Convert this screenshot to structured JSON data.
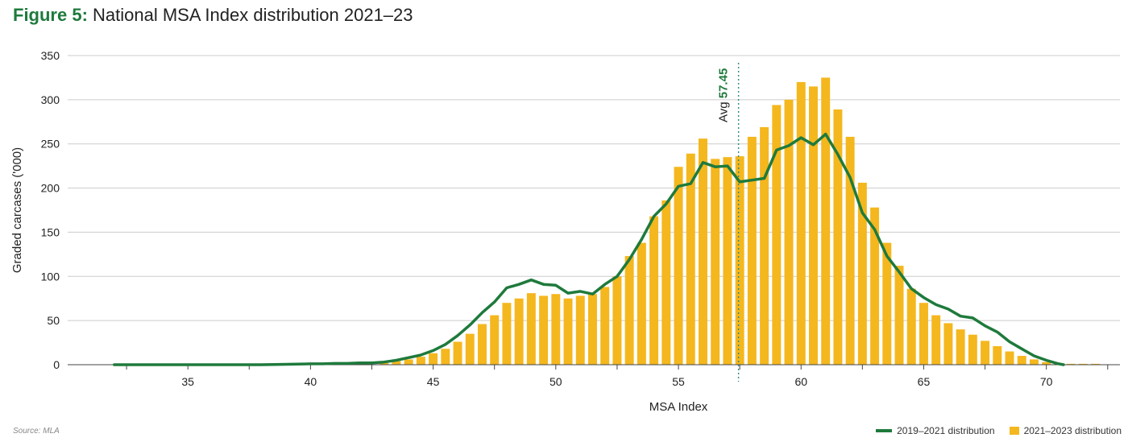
{
  "title": {
    "figure_label": "Figure 5:",
    "text": "National MSA Index distribution 2021–23"
  },
  "source": "Source: MLA",
  "colors": {
    "bar": "#f4b71e",
    "line": "#1e7a3c",
    "grid": "#cccccc",
    "avg": "#2f8a7e"
  },
  "chart_data": {
    "type": "bar",
    "xlabel": "MSA Index",
    "ylabel": "Graded carcases ('000)",
    "xlim": [
      30.1,
      73
    ],
    "ylim": [
      0,
      350
    ],
    "xticks": [
      35,
      40,
      45,
      50,
      55,
      60,
      65,
      70
    ],
    "yticks": [
      0,
      50,
      100,
      150,
      200,
      250,
      300,
      350
    ],
    "legend_position": "bottom-right",
    "grid": "horizontal",
    "average": {
      "label": "Avg",
      "value_label": "57.45",
      "x": 57.45
    },
    "series": [
      {
        "name": "2021–2023 distribution",
        "kind": "bar",
        "x": [
          43.0,
          43.5,
          44.0,
          44.5,
          45.0,
          45.5,
          46.0,
          46.5,
          47.0,
          47.5,
          48.0,
          48.5,
          49.0,
          49.5,
          50.0,
          50.5,
          51.0,
          51.5,
          52.0,
          52.5,
          53.0,
          53.5,
          54.0,
          54.5,
          55.0,
          55.5,
          56.0,
          56.5,
          57.0,
          57.5,
          58.0,
          58.5,
          59.0,
          59.5,
          60.0,
          60.5,
          61.0,
          61.5,
          62.0,
          62.5,
          63.0,
          63.5,
          64.0,
          64.5,
          65.0,
          65.5,
          66.0,
          66.5,
          67.0,
          67.5,
          68.0,
          68.5,
          69.0,
          69.5,
          70.0,
          70.5,
          71.0,
          71.5,
          72.0,
          72.5
        ],
        "values": [
          2,
          4,
          6,
          9,
          13,
          18,
          26,
          35,
          46,
          56,
          70,
          75,
          81,
          78,
          80,
          75,
          78,
          80,
          88,
          100,
          123,
          138,
          168,
          186,
          224,
          239,
          256,
          233,
          235,
          236,
          258,
          269,
          294,
          300,
          320,
          315,
          325,
          289,
          258,
          206,
          178,
          138,
          112,
          86,
          70,
          56,
          47,
          40,
          34,
          27,
          21,
          15,
          10,
          6,
          3,
          1,
          1,
          1,
          1,
          0
        ]
      },
      {
        "name": "2019–2021 distribution",
        "kind": "line",
        "x": [
          32.0,
          33.0,
          34.0,
          35.0,
          36.0,
          37.0,
          38.0,
          39.0,
          40.0,
          40.5,
          41.0,
          41.5,
          42.0,
          42.5,
          43.0,
          43.5,
          44.0,
          44.5,
          45.0,
          45.5,
          46.0,
          46.5,
          47.0,
          47.5,
          48.0,
          48.5,
          49.0,
          49.5,
          50.0,
          50.5,
          51.0,
          51.5,
          52.0,
          52.5,
          53.0,
          53.5,
          54.0,
          54.5,
          55.0,
          55.5,
          56.0,
          56.5,
          57.0,
          57.5,
          58.0,
          58.5,
          59.0,
          59.5,
          60.0,
          60.5,
          61.0,
          61.5,
          62.0,
          62.5,
          63.0,
          63.5,
          64.0,
          64.5,
          65.0,
          65.5,
          66.0,
          66.5,
          67.0,
          67.5,
          68.0,
          68.5,
          69.0,
          69.5,
          70.0,
          70.5,
          70.7
        ],
        "values": [
          0,
          0,
          0,
          0,
          0,
          0,
          0,
          0.5,
          1,
          1,
          1.5,
          1.5,
          2,
          2,
          3,
          5,
          8,
          11,
          16,
          23,
          33,
          45,
          59,
          71,
          87,
          91,
          96,
          91,
          90,
          81,
          83,
          80,
          91,
          100,
          119,
          142,
          168,
          182,
          202,
          205,
          229,
          224,
          225,
          207,
          209,
          211,
          243,
          248,
          257,
          249,
          261,
          238,
          212,
          172,
          153,
          123,
          105,
          86,
          76,
          68,
          63,
          55,
          53,
          44,
          37,
          26,
          18,
          10,
          5,
          1,
          0
        ]
      }
    ]
  }
}
